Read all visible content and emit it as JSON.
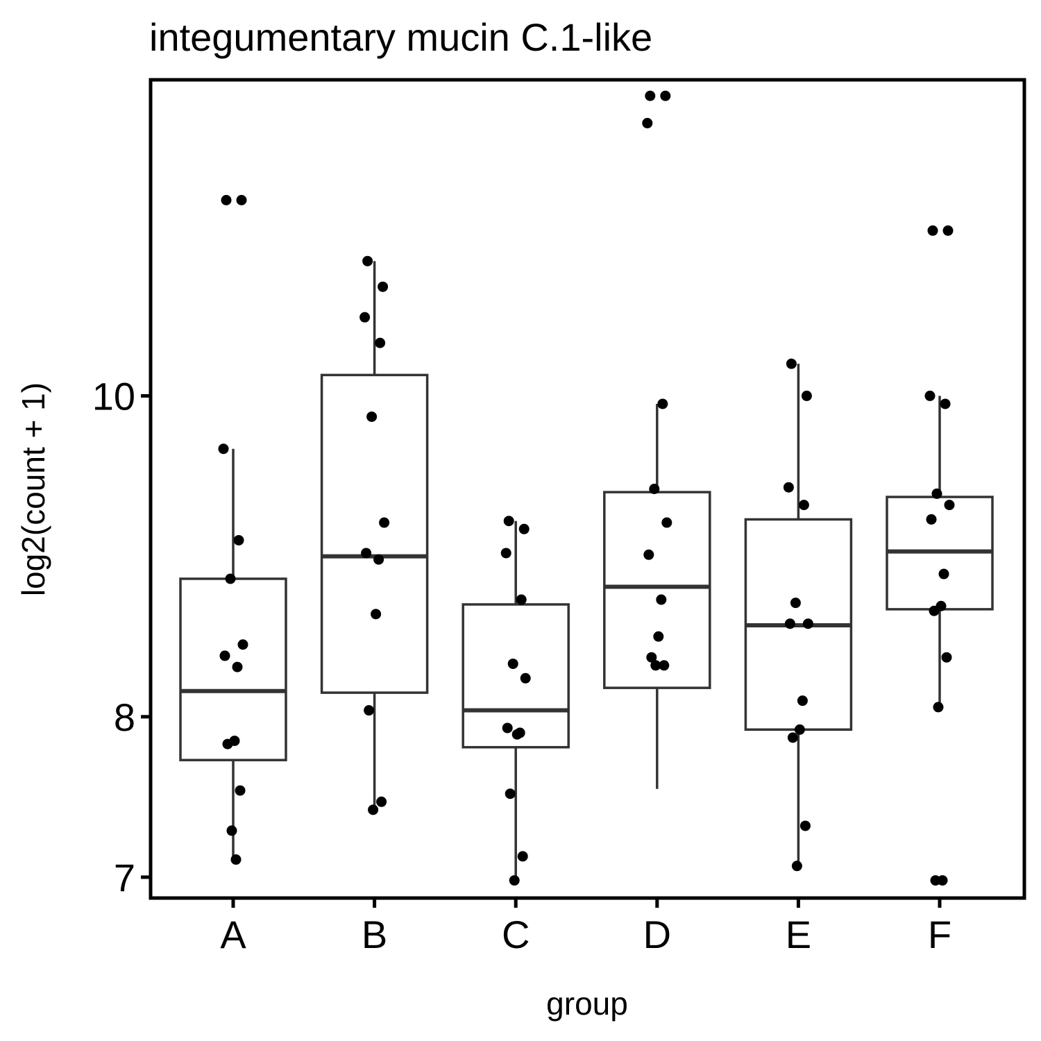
{
  "chart_data": {
    "type": "box",
    "title": "integumentary mucin C.1-like",
    "xlabel": "group",
    "ylabel": "log2(count + 1)",
    "categories": [
      "A",
      "B",
      "C",
      "D",
      "E",
      "F"
    ],
    "yticks": [
      7,
      8,
      10
    ],
    "ylim": [
      6.87,
      11.97
    ],
    "grid": false,
    "legend": "none",
    "boxes": [
      {
        "group": "A",
        "whisker_low": 7.1,
        "q1": 7.73,
        "median": 8.16,
        "q3": 8.86,
        "whisker_high": 9.67
      },
      {
        "group": "B",
        "whisker_low": 7.44,
        "q1": 8.15,
        "median": 9.0,
        "q3": 10.13,
        "whisker_high": 10.84
      },
      {
        "group": "C",
        "whisker_low": 6.98,
        "q1": 7.81,
        "median": 8.04,
        "q3": 8.7,
        "whisker_high": 9.22
      },
      {
        "group": "D",
        "whisker_low": 7.55,
        "q1": 8.18,
        "median": 8.81,
        "q3": 9.4,
        "whisker_high": 9.95
      },
      {
        "group": "E",
        "whisker_low": 7.07,
        "q1": 7.92,
        "median": 8.57,
        "q3": 9.23,
        "whisker_high": 10.2
      },
      {
        "group": "F",
        "whisker_low": 8.06,
        "q1": 8.67,
        "median": 9.03,
        "q3": 9.37,
        "whisker_high": 10.0
      }
    ],
    "points": [
      {
        "group": "A",
        "values": [
          11.22,
          11.22,
          9.67,
          9.1,
          8.86,
          8.45,
          8.38,
          8.31,
          7.85,
          7.83,
          7.54,
          7.29,
          7.11
        ]
      },
      {
        "group": "B",
        "values": [
          10.84,
          10.68,
          10.49,
          10.33,
          9.87,
          9.21,
          9.02,
          8.98,
          8.64,
          8.04,
          7.47,
          7.42
        ]
      },
      {
        "group": "C",
        "values": [
          9.22,
          9.17,
          9.02,
          8.73,
          8.33,
          8.24,
          7.93,
          7.9,
          7.89,
          7.52,
          7.13,
          6.98
        ]
      },
      {
        "group": "D",
        "values": [
          11.87,
          11.87,
          11.7,
          9.95,
          9.42,
          9.21,
          9.01,
          8.73,
          8.5,
          8.37,
          8.32,
          8.32
        ]
      },
      {
        "group": "E",
        "values": [
          10.2,
          10.0,
          9.43,
          9.32,
          8.71,
          8.58,
          8.58,
          8.1,
          7.92,
          7.87,
          7.32,
          7.07
        ]
      },
      {
        "group": "F",
        "values": [
          11.03,
          11.03,
          10.0,
          9.95,
          9.39,
          9.32,
          9.23,
          8.89,
          8.69,
          8.66,
          8.37,
          8.06,
          6.98,
          6.98
        ]
      }
    ]
  }
}
